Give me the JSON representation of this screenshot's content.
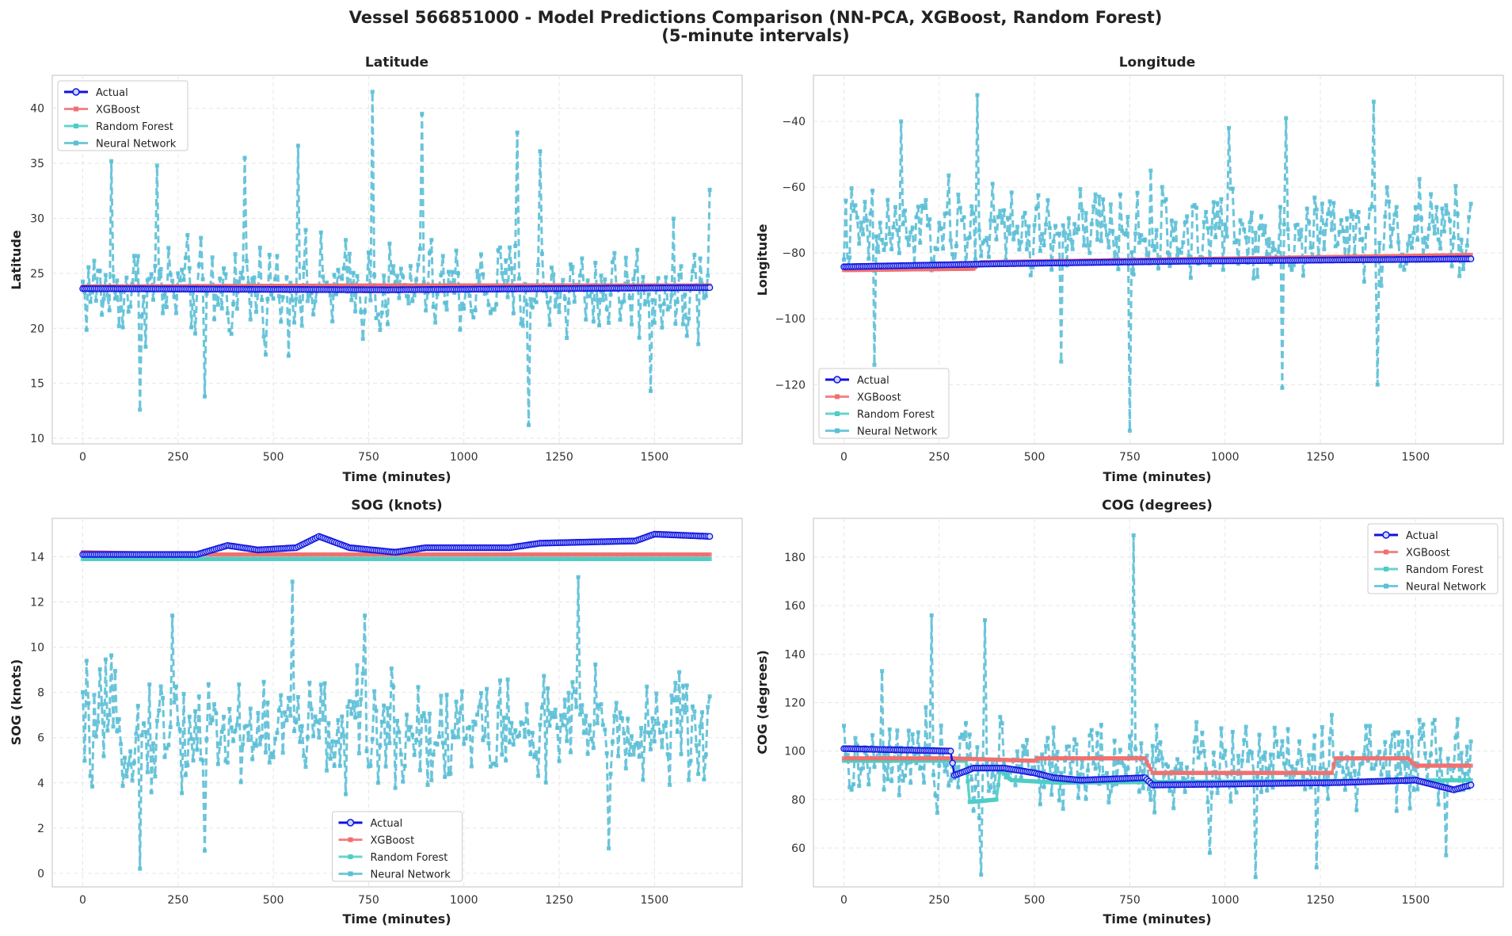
{
  "figure": {
    "title_line1": "Vessel 566851000 - Model Predictions Comparison (NN-PCA, XGBoost, Random Forest)",
    "title_line2": "(5-minute intervals)"
  },
  "colors": {
    "actual": "#1010e0",
    "xgboost": "#f07070",
    "random_forest": "#4ecdc4",
    "neural_network": "#5bbfd6"
  },
  "legend_labels": [
    "Actual",
    "XGBoost",
    "Random Forest",
    "Neural Network"
  ],
  "chart_data": [
    {
      "type": "line",
      "title": "Latitude",
      "xlabel": "Time (minutes)",
      "ylabel": "Latitude",
      "xlim": [
        -80,
        1730
      ],
      "ylim": [
        9.5,
        43
      ],
      "xticks": [
        0,
        250,
        500,
        750,
        1000,
        1250,
        1500
      ],
      "yticks": [
        10,
        15,
        20,
        25,
        30,
        35,
        40
      ],
      "legend": "upper left",
      "grid": true,
      "x_step": 5,
      "x_max": 1645,
      "series": [
        {
          "name": "Actual",
          "style": "solid-circle",
          "keyframes": [
            [
              0,
              23.6
            ],
            [
              800,
              23.5
            ],
            [
              1645,
              23.7
            ]
          ]
        },
        {
          "name": "XGBoost",
          "style": "solid-square",
          "keyframes": [
            [
              0,
              23.8
            ],
            [
              830,
              23.9
            ],
            [
              1645,
              23.9
            ]
          ]
        },
        {
          "name": "Random Forest",
          "style": "solid-square",
          "keyframes": [
            [
              0,
              23.7
            ],
            [
              1645,
              23.7
            ]
          ]
        },
        {
          "name": "Neural Network",
          "style": "dashed-square",
          "mean": 23.5,
          "spread": 3.5,
          "spikes": [
            [
              75,
              35.2
            ],
            [
              150,
              12.6
            ],
            [
              195,
              34.8
            ],
            [
              320,
              13.8
            ],
            [
              425,
              35.5
            ],
            [
              565,
              36.6
            ],
            [
              760,
              41.5
            ],
            [
              890,
              39.5
            ],
            [
              1140,
              37.8
            ],
            [
              1170,
              11.2
            ],
            [
              1200,
              36.1
            ],
            [
              1490,
              14.3
            ],
            [
              1645,
              32.6
            ]
          ]
        }
      ]
    },
    {
      "type": "line",
      "title": "Longitude",
      "xlabel": "Time (minutes)",
      "ylabel": "Longitude",
      "xlim": [
        -80,
        1730
      ],
      "ylim": [
        -138,
        -26
      ],
      "xticks": [
        0,
        250,
        500,
        750,
        1000,
        1250,
        1500
      ],
      "yticks": [
        -40,
        -60,
        -80,
        -100,
        -120
      ],
      "legend": "lower left",
      "grid": true,
      "x_step": 5,
      "x_max": 1645,
      "series": [
        {
          "name": "Actual",
          "style": "solid-circle",
          "keyframes": [
            [
              0,
              -84.2
            ],
            [
              400,
              -83.3
            ],
            [
              900,
              -82.5
            ],
            [
              1645,
              -81.8
            ]
          ]
        },
        {
          "name": "XGBoost",
          "style": "solid-square",
          "keyframes": [
            [
              0,
              -85.2
            ],
            [
              340,
              -84.8
            ],
            [
              360,
              -82.8
            ],
            [
              1645,
              -80.6
            ]
          ]
        },
        {
          "name": "Random Forest",
          "style": "solid-square",
          "keyframes": [
            [
              0,
              -84.0
            ],
            [
              1645,
              -81.8
            ]
          ]
        },
        {
          "name": "Neural Network",
          "style": "dashed-square",
          "mean": -74,
          "spread": 11,
          "spikes": [
            [
              80,
              -114
            ],
            [
              150,
              -40
            ],
            [
              350,
              -32
            ],
            [
              570,
              -113
            ],
            [
              750,
              -134
            ],
            [
              1150,
              -121
            ],
            [
              1400,
              -120
            ],
            [
              1390,
              -34
            ],
            [
              1160,
              -39
            ],
            [
              1010,
              -42
            ]
          ]
        }
      ]
    },
    {
      "type": "line",
      "title": "SOG (knots)",
      "xlabel": "Time (minutes)",
      "ylabel": "SOG (knots)",
      "xlim": [
        -80,
        1730
      ],
      "ylim": [
        -0.6,
        15.7
      ],
      "xticks": [
        0,
        250,
        500,
        750,
        1000,
        1250,
        1500
      ],
      "yticks": [
        0,
        2,
        4,
        6,
        8,
        10,
        12,
        14
      ],
      "legend": "lower center",
      "grid": true,
      "x_step": 5,
      "x_max": 1645,
      "series": [
        {
          "name": "Actual",
          "style": "solid-circle",
          "keyframes": [
            [
              0,
              14.1
            ],
            [
              300,
              14.1
            ],
            [
              380,
              14.5
            ],
            [
              460,
              14.3
            ],
            [
              560,
              14.4
            ],
            [
              620,
              14.9
            ],
            [
              700,
              14.4
            ],
            [
              820,
              14.2
            ],
            [
              900,
              14.4
            ],
            [
              1120,
              14.4
            ],
            [
              1200,
              14.6
            ],
            [
              1450,
              14.7
            ],
            [
              1500,
              15.0
            ],
            [
              1645,
              14.9
            ]
          ]
        },
        {
          "name": "XGBoost",
          "style": "solid-square",
          "keyframes": [
            [
              0,
              14.2
            ],
            [
              300,
              14.1
            ],
            [
              1645,
              14.1
            ]
          ]
        },
        {
          "name": "Random Forest",
          "style": "solid-square",
          "keyframes": [
            [
              0,
              13.9
            ],
            [
              1645,
              13.9
            ]
          ]
        },
        {
          "name": "Neural Network",
          "style": "dashed-square",
          "mean": 6.3,
          "spread": 2.0,
          "spikes": [
            [
              150,
              0.2
            ],
            [
              320,
              1.0
            ],
            [
              550,
              12.9
            ],
            [
              1300,
              13.1
            ],
            [
              235,
              11.4
            ],
            [
              1380,
              1.1
            ],
            [
              740,
              11.4
            ]
          ]
        }
      ]
    },
    {
      "type": "line",
      "title": "COG (degrees)",
      "xlabel": "Time (minutes)",
      "ylabel": "COG (degrees)",
      "xlim": [
        -80,
        1730
      ],
      "ylim": [
        44,
        196
      ],
      "xticks": [
        0,
        250,
        500,
        750,
        1000,
        1250,
        1500
      ],
      "yticks": [
        60,
        80,
        100,
        120,
        140,
        160,
        180
      ],
      "legend": "upper right",
      "grid": true,
      "x_step": 5,
      "x_max": 1645,
      "series": [
        {
          "name": "Actual",
          "style": "solid-circle",
          "keyframes": [
            [
              0,
              101
            ],
            [
              280,
              100
            ],
            [
              290,
              90
            ],
            [
              340,
              93
            ],
            [
              420,
              93
            ],
            [
              500,
              91
            ],
            [
              550,
              89
            ],
            [
              620,
              88
            ],
            [
              790,
              89
            ],
            [
              810,
              86
            ],
            [
              1300,
              87
            ],
            [
              1500,
              88
            ],
            [
              1600,
              84
            ],
            [
              1645,
              86
            ]
          ]
        },
        {
          "name": "XGBoost",
          "style": "solid-square",
          "keyframes": [
            [
              0,
              97
            ],
            [
              280,
              97
            ],
            [
              500,
              96
            ],
            [
              510,
              97
            ],
            [
              790,
              97
            ],
            [
              810,
              91
            ],
            [
              1280,
              91
            ],
            [
              1290,
              97
            ],
            [
              1480,
              97
            ],
            [
              1500,
              94
            ],
            [
              1645,
              94
            ]
          ]
        },
        {
          "name": "Random Forest",
          "style": "solid-square",
          "keyframes": [
            [
              0,
              96
            ],
            [
              320,
              96
            ],
            [
              330,
              79
            ],
            [
              400,
              80
            ],
            [
              410,
              92
            ],
            [
              440,
              88
            ],
            [
              560,
              87
            ],
            [
              1645,
              88
            ]
          ]
        },
        {
          "name": "Neural Network",
          "style": "dashed-square",
          "mean": 94,
          "spread": 14,
          "spikes": [
            [
              230,
              156
            ],
            [
              360,
              49
            ],
            [
              370,
              154
            ],
            [
              760,
              189
            ],
            [
              1080,
              48
            ],
            [
              960,
              58
            ],
            [
              1240,
              52
            ],
            [
              1580,
              57
            ],
            [
              100,
              133
            ]
          ]
        }
      ]
    }
  ]
}
